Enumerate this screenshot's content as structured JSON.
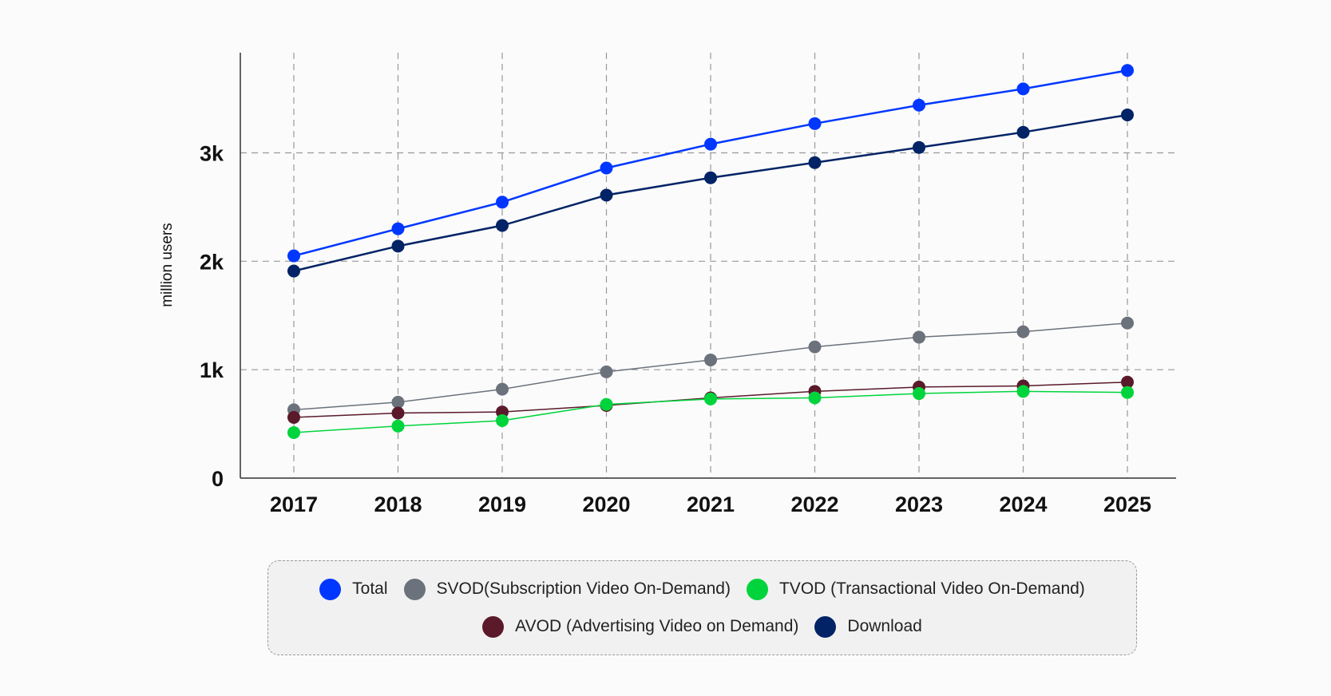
{
  "chart_data": {
    "type": "line",
    "title": "",
    "xlabel": "",
    "ylabel": "million users",
    "ylim": [
      0,
      3800
    ],
    "yticks": [
      0,
      1000,
      2000,
      3000
    ],
    "ytick_labels": [
      "0",
      "1k",
      "2k",
      "3k"
    ],
    "categories": [
      "2017",
      "2018",
      "2019",
      "2020",
      "2021",
      "2022",
      "2023",
      "2024",
      "2025"
    ],
    "grid": true,
    "legend_placement": "bottom",
    "series": [
      {
        "name": "Total",
        "color": "#0037ff",
        "values": [
          2050,
          2300,
          2545,
          2860,
          3080,
          3270,
          3440,
          3590,
          3760
        ]
      },
      {
        "name": "SVOD(Subscription Video On-Demand)",
        "color": "#6b727c",
        "values": [
          630,
          700,
          820,
          980,
          1090,
          1210,
          1300,
          1350,
          1430
        ]
      },
      {
        "name": "TVOD (Transactional Video On-Demand)",
        "color": "#00d43c",
        "values": [
          420,
          480,
          530,
          680,
          730,
          740,
          780,
          800,
          790
        ]
      },
      {
        "name": "AVOD (Advertising Video on Demand)",
        "color": "#5a1a2a",
        "values": [
          560,
          600,
          610,
          670,
          740,
          800,
          840,
          850,
          885
        ]
      },
      {
        "name": "Download",
        "color": "#022366",
        "values": [
          1910,
          2140,
          2330,
          2610,
          2770,
          2910,
          3050,
          3190,
          3350
        ]
      }
    ]
  }
}
